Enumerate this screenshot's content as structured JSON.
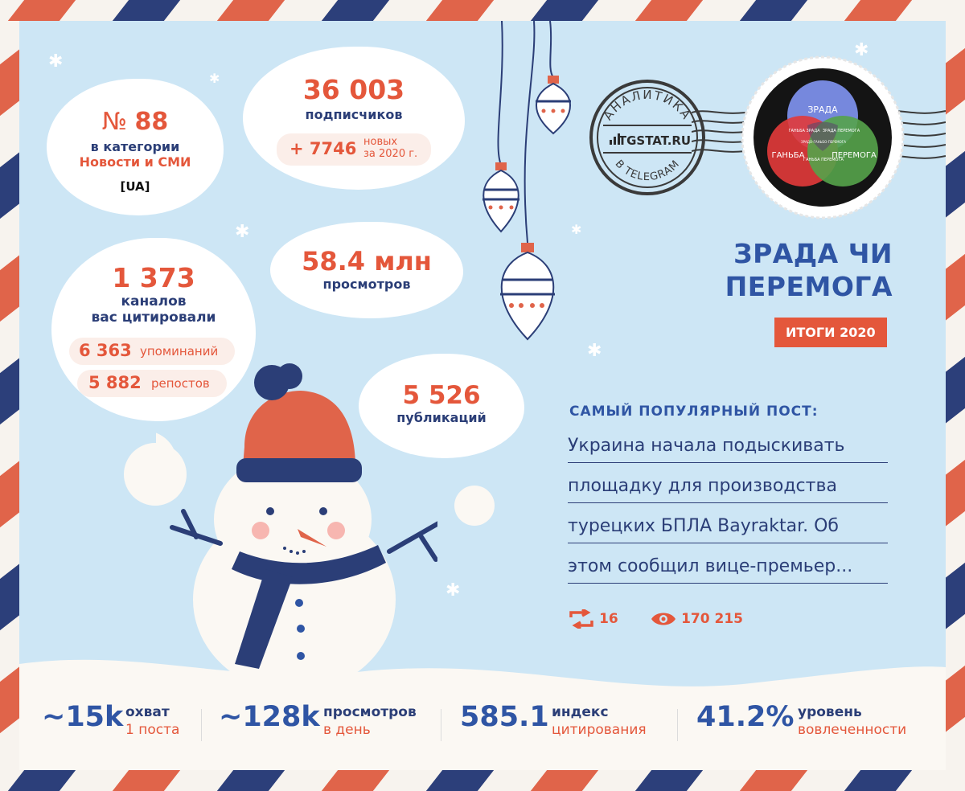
{
  "rank": {
    "prefix": "№",
    "value": "88",
    "line1": "в категории",
    "line2": "Новости и СМИ",
    "region": "[UA]"
  },
  "subscribers": {
    "value": "36 003",
    "label": "подписчиков",
    "delta": "+ 7746",
    "delta_l1": "новых",
    "delta_l2": "за 2020 г."
  },
  "citing": {
    "value": "1 373",
    "label1": "каналов",
    "label2": "вас цитировали",
    "mentions_value": "6 363",
    "mentions_label": "упоминаний",
    "reposts_value": "5 882",
    "reposts_label": "репостов"
  },
  "views": {
    "value": "58.4 млн",
    "label": "просмотров"
  },
  "posts": {
    "value": "5 526",
    "label": "публикаций"
  },
  "stamp": {
    "top": "АНАЛИТИКА",
    "brand": "TGSTAT.RU",
    "bottom": "В TELEGRAM"
  },
  "venn": {
    "a": "ЗРАДА",
    "b": "ГАНЬБА",
    "c": "ПЕРЕМОГА",
    "ab": "ГАНЬБА ЗРАДА",
    "ac": "ЗРАДА ПЕРЕМОГА",
    "bc": "ГАНЬБА ПЕРЕМОГА",
    "abc": "ЗРАДО-ГАНЬБО-ПЕРЕМОГА"
  },
  "channel": {
    "title1": "ЗРАДА ЧИ",
    "title2": "ПЕРЕМОГА",
    "badge": "ИТОГИ 2020"
  },
  "popular_post": {
    "heading": "САМЫЙ ПОПУЛЯРНЫЙ ПОСТ:",
    "lines": [
      "Украина начала подыскивать",
      "площадку для производства",
      "турецких БПЛА Bayraktar. Об",
      "этом сообщил вице-премьер..."
    ],
    "reposts": "16",
    "views": "170 215"
  },
  "stats": [
    {
      "value": "~15k",
      "l1": "охват",
      "l2": "1 поста"
    },
    {
      "value": "~128k",
      "l1": "просмотров",
      "l2": "в день"
    },
    {
      "value": "585.1",
      "l1": "индекс",
      "l2": "цитирования"
    },
    {
      "value": "41.2%",
      "l1": "уровень",
      "l2": "вовлеченности"
    }
  ],
  "colors": {
    "accent": "#e4573b",
    "navy": "#2b3e77",
    "title_blue": "#2f55a4",
    "sky": "#cde6f5"
  }
}
